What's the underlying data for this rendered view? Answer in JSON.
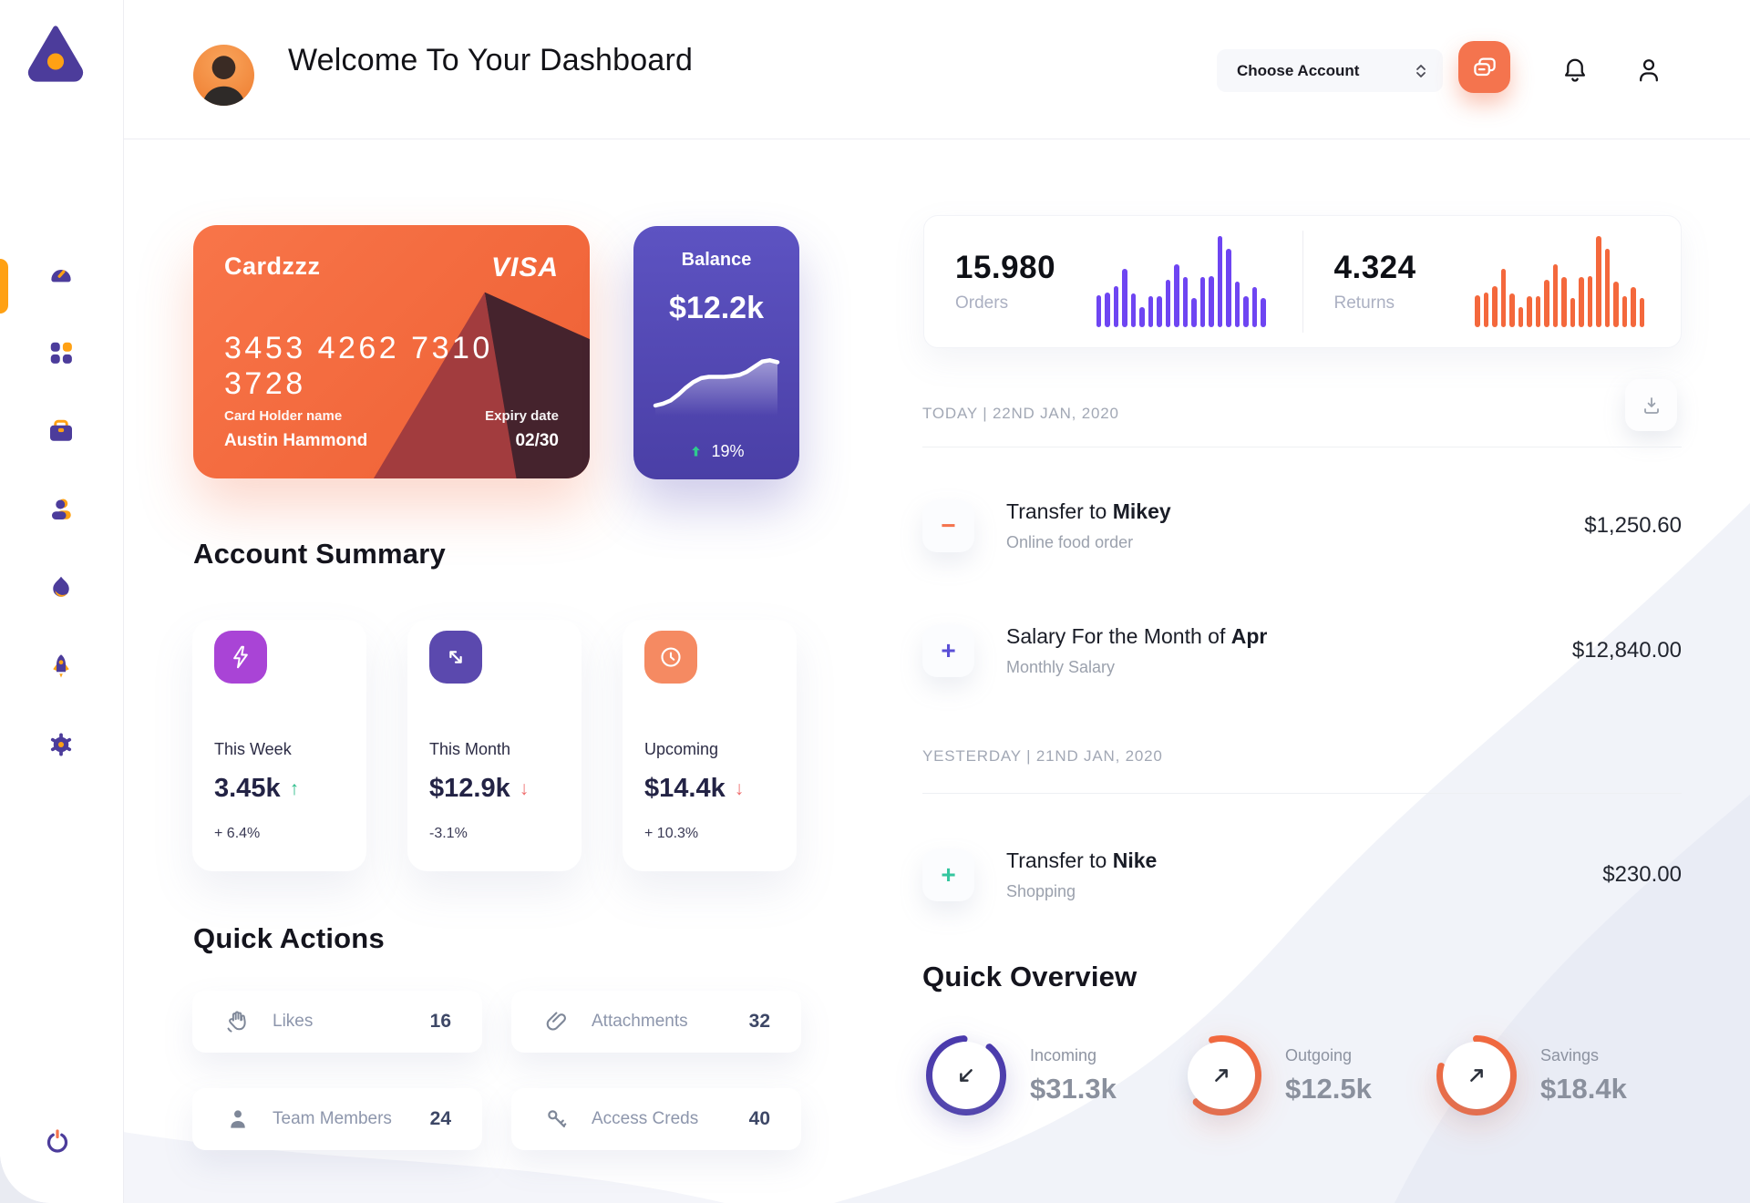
{
  "colors": {
    "green": "#2bbd8a",
    "red": "#ef6e6e",
    "accent_orange": "#f4744e",
    "sidebar_purple": "#4c3c9b",
    "sidebar_orange": "#ffa114",
    "bar_purple": "#6e45f2",
    "bar_orange": "#f4683c"
  },
  "sidebar": {
    "items": [
      "dashboard",
      "apps",
      "work",
      "clients",
      "activity",
      "launch",
      "settings"
    ],
    "logout": "power"
  },
  "header": {
    "title": "Welcome To Your Dashboard",
    "account_dropdown": "Choose Account"
  },
  "cards": {
    "credit": {
      "name": "Cardzzz",
      "brand": "VISA",
      "number": "3453 4262 7310 3728",
      "holder_label": "Card Holder name",
      "holder": "Austin Hammond",
      "expiry_label": "Expiry date",
      "expiry": "02/30"
    },
    "balance": {
      "label": "Balance",
      "value": "$12.2k",
      "trend": "19%"
    }
  },
  "account_summary": {
    "title": "Account Summary",
    "items": [
      {
        "label": "This Week",
        "value": "3.45k",
        "direction": "up",
        "change": "+ 6.4%",
        "icon": "lightning",
        "color": "#a944d6"
      },
      {
        "label": "This Month",
        "value": "$12.9k",
        "direction": "down",
        "change": "-3.1%",
        "icon": "diagonal-arrows",
        "color": "#5b49ae"
      },
      {
        "label": "Upcoming",
        "value": "$14.4k",
        "direction": "down",
        "change": "+ 10.3%",
        "icon": "clock",
        "color": "#f58a62"
      }
    ]
  },
  "quick_actions": {
    "title": "Quick Actions",
    "items": [
      {
        "label": "Likes",
        "count": "16",
        "icon": "clap"
      },
      {
        "label": "Attachments",
        "count": "32",
        "icon": "paperclip"
      },
      {
        "label": "Team Members",
        "count": "24",
        "icon": "person"
      },
      {
        "label": "Access Creds",
        "count": "40",
        "icon": "key"
      }
    ]
  },
  "stats": {
    "orders": {
      "value": "15.980",
      "label": "Orders"
    },
    "returns": {
      "value": "4.324",
      "label": "Returns"
    }
  },
  "chart_data": [
    {
      "type": "bar",
      "title": "Orders activity",
      "values": [
        35,
        38,
        45,
        64,
        37,
        22,
        34,
        34,
        52,
        69,
        55,
        32,
        55,
        56,
        100,
        86,
        50,
        34,
        44,
        32
      ],
      "color": "#6e45f2",
      "ylim": [
        0,
        100
      ],
      "grid": false
    },
    {
      "type": "bar",
      "title": "Returns activity",
      "values": [
        35,
        38,
        45,
        64,
        37,
        22,
        34,
        34,
        52,
        69,
        55,
        32,
        55,
        56,
        100,
        86,
        50,
        34,
        44,
        32
      ],
      "color": "#f4683c",
      "ylim": [
        0,
        100
      ],
      "grid": false
    },
    {
      "type": "line",
      "title": "Balance trend",
      "points": [
        10,
        13,
        18,
        27,
        38,
        47,
        53,
        55,
        55,
        55,
        56,
        58,
        63,
        71,
        79,
        81,
        78
      ],
      "color": "#ffffff"
    }
  ],
  "transactions": {
    "groups": [
      {
        "label": "TODAY | 22ND JAN, 2020"
      },
      {
        "label": "YESTERDAY | 21ND JAN, 2020"
      }
    ],
    "rows": [
      {
        "sign": "minus",
        "sign_color": "#f4744e",
        "title_prefix": "Transfer to ",
        "title_bold": "Mikey",
        "subtitle": "Online food order",
        "amount": "$1,250.60"
      },
      {
        "sign": "plus",
        "sign_color": "#5a4fd6",
        "title_prefix": "Salary For the Month of ",
        "title_bold": "Apr",
        "subtitle": "Monthly Salary",
        "amount": "$12,840.00"
      },
      {
        "sign": "plus",
        "sign_color": "#35c69f",
        "title_prefix": "Transfer to ",
        "title_bold": "Nike",
        "subtitle": "Shopping",
        "amount": "$230.00"
      }
    ]
  },
  "quick_overview": {
    "title": "Quick Overview",
    "items": [
      {
        "label": "Incoming",
        "value": "$31.3k",
        "pct": 88,
        "gap_center": 80,
        "color": "#4938ad",
        "shadow": "rgba(73,56,173,.35)",
        "arrow": "down-left"
      },
      {
        "label": "Outgoing",
        "value": "$12.5k",
        "pct": 66,
        "gap_center": 54,
        "color": "#f4683c",
        "shadow": "rgba(244,104,60,.38)",
        "arrow": "up-right"
      },
      {
        "label": "Savings",
        "value": "$18.4k",
        "pct": 79,
        "gap_center": 64.5,
        "color": "#f4683c",
        "shadow": "rgba(244,104,60,.38)",
        "arrow": "up-right"
      }
    ]
  }
}
